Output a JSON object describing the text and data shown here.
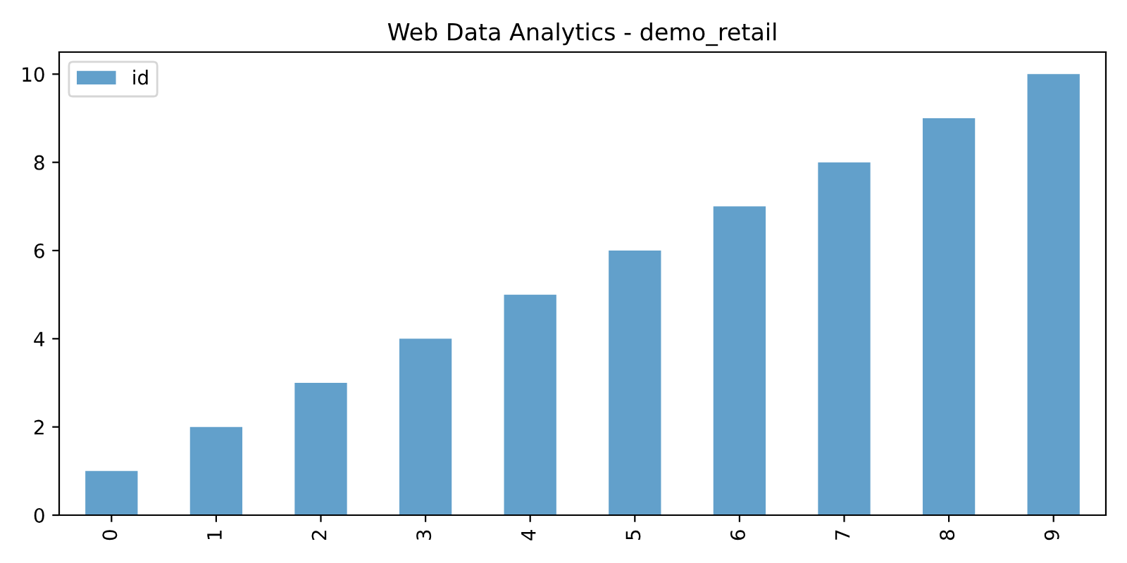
{
  "chart_data": {
    "type": "bar",
    "title": "Web Data Analytics - demo_retail",
    "categories": [
      "0",
      "1",
      "2",
      "3",
      "4",
      "5",
      "6",
      "7",
      "8",
      "9"
    ],
    "series": [
      {
        "name": "id",
        "color": "#62a0cb",
        "values": [
          1,
          2,
          3,
          4,
          5,
          6,
          7,
          8,
          9,
          10
        ]
      }
    ],
    "ylim": [
      0,
      10.5
    ],
    "yticks": [
      0,
      2,
      4,
      6,
      8,
      10
    ],
    "grid": false,
    "legend": "top left"
  }
}
